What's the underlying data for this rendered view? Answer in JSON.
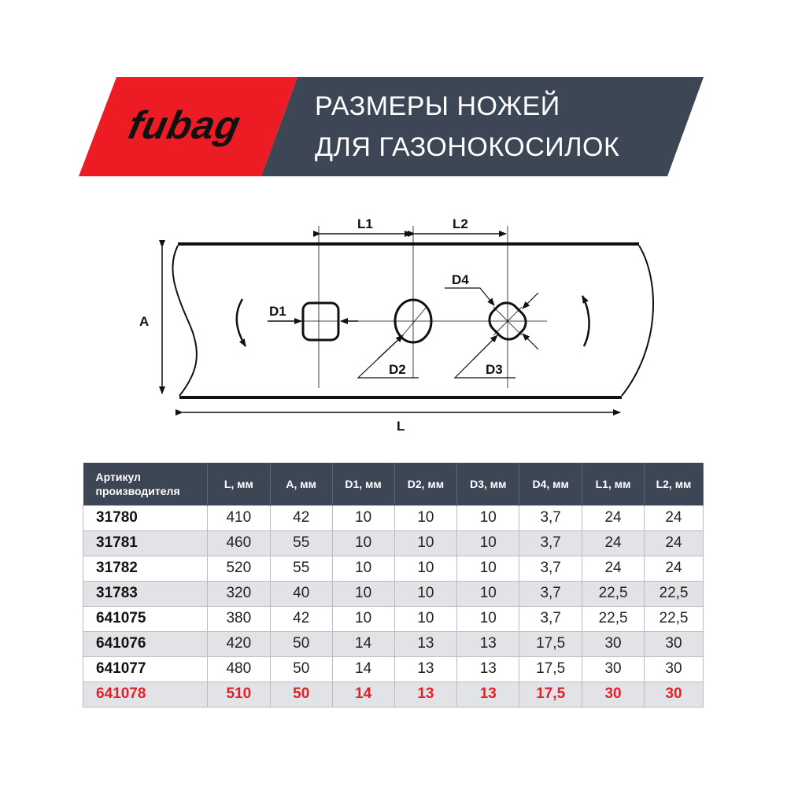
{
  "brand": {
    "logo_text": "fubag",
    "red": "#ed1c24",
    "dark": "#3c4655"
  },
  "title": {
    "line1": "РАЗМЕРЫ НОЖЕЙ",
    "line2": "ДЛЯ ГАЗОНОКОСИЛОК"
  },
  "diagram": {
    "labels": {
      "L1": "L1",
      "L2": "L2",
      "A": "A",
      "L": "L",
      "D1": "D1",
      "D2": "D2",
      "D3": "D3",
      "D4": "D4"
    }
  },
  "table": {
    "headers": [
      "Артикул производителя",
      "L, мм",
      "A, мм",
      "D1, мм",
      "D2, мм",
      "D3, мм",
      "D4, мм",
      "L1, мм",
      "L2, мм"
    ],
    "rows": [
      [
        "31780",
        "410",
        "42",
        "10",
        "10",
        "10",
        "3,7",
        "24",
        "24"
      ],
      [
        "31781",
        "460",
        "55",
        "10",
        "10",
        "10",
        "3,7",
        "24",
        "24"
      ],
      [
        "31782",
        "520",
        "55",
        "10",
        "10",
        "10",
        "3,7",
        "24",
        "24"
      ],
      [
        "31783",
        "320",
        "40",
        "10",
        "10",
        "10",
        "3,7",
        "22,5",
        "22,5"
      ],
      [
        "641075",
        "380",
        "42",
        "10",
        "10",
        "10",
        "3,7",
        "22,5",
        "22,5"
      ],
      [
        "641076",
        "420",
        "50",
        "14",
        "13",
        "13",
        "17,5",
        "30",
        "30"
      ],
      [
        "641077",
        "480",
        "50",
        "14",
        "13",
        "13",
        "17,5",
        "30",
        "30"
      ],
      [
        "641078",
        "510",
        "50",
        "14",
        "13",
        "13",
        "17,5",
        "30",
        "30"
      ]
    ],
    "highlight_row": 7,
    "highlight_color": "#e3202a"
  }
}
